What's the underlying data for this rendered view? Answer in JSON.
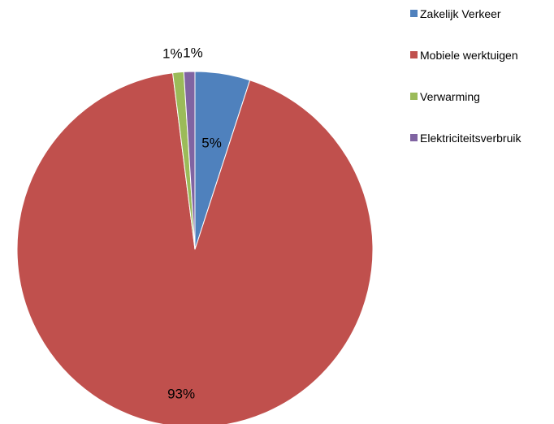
{
  "chart_data": {
    "type": "pie",
    "title": "",
    "categories": [
      "Zakelijk Verkeer",
      "Mobiele werktuigen",
      "Verwarming",
      "Elektriciteitsverbruik"
    ],
    "values": [
      5,
      93,
      1,
      1
    ],
    "data_labels": [
      "5%",
      "93%",
      "1%",
      "1%"
    ],
    "colors": [
      "#4F81BD",
      "#C0504D",
      "#9BBB59",
      "#8064A2"
    ],
    "legend_position": "right",
    "start_angle": "12 o'clock",
    "direction": "clockwise"
  }
}
